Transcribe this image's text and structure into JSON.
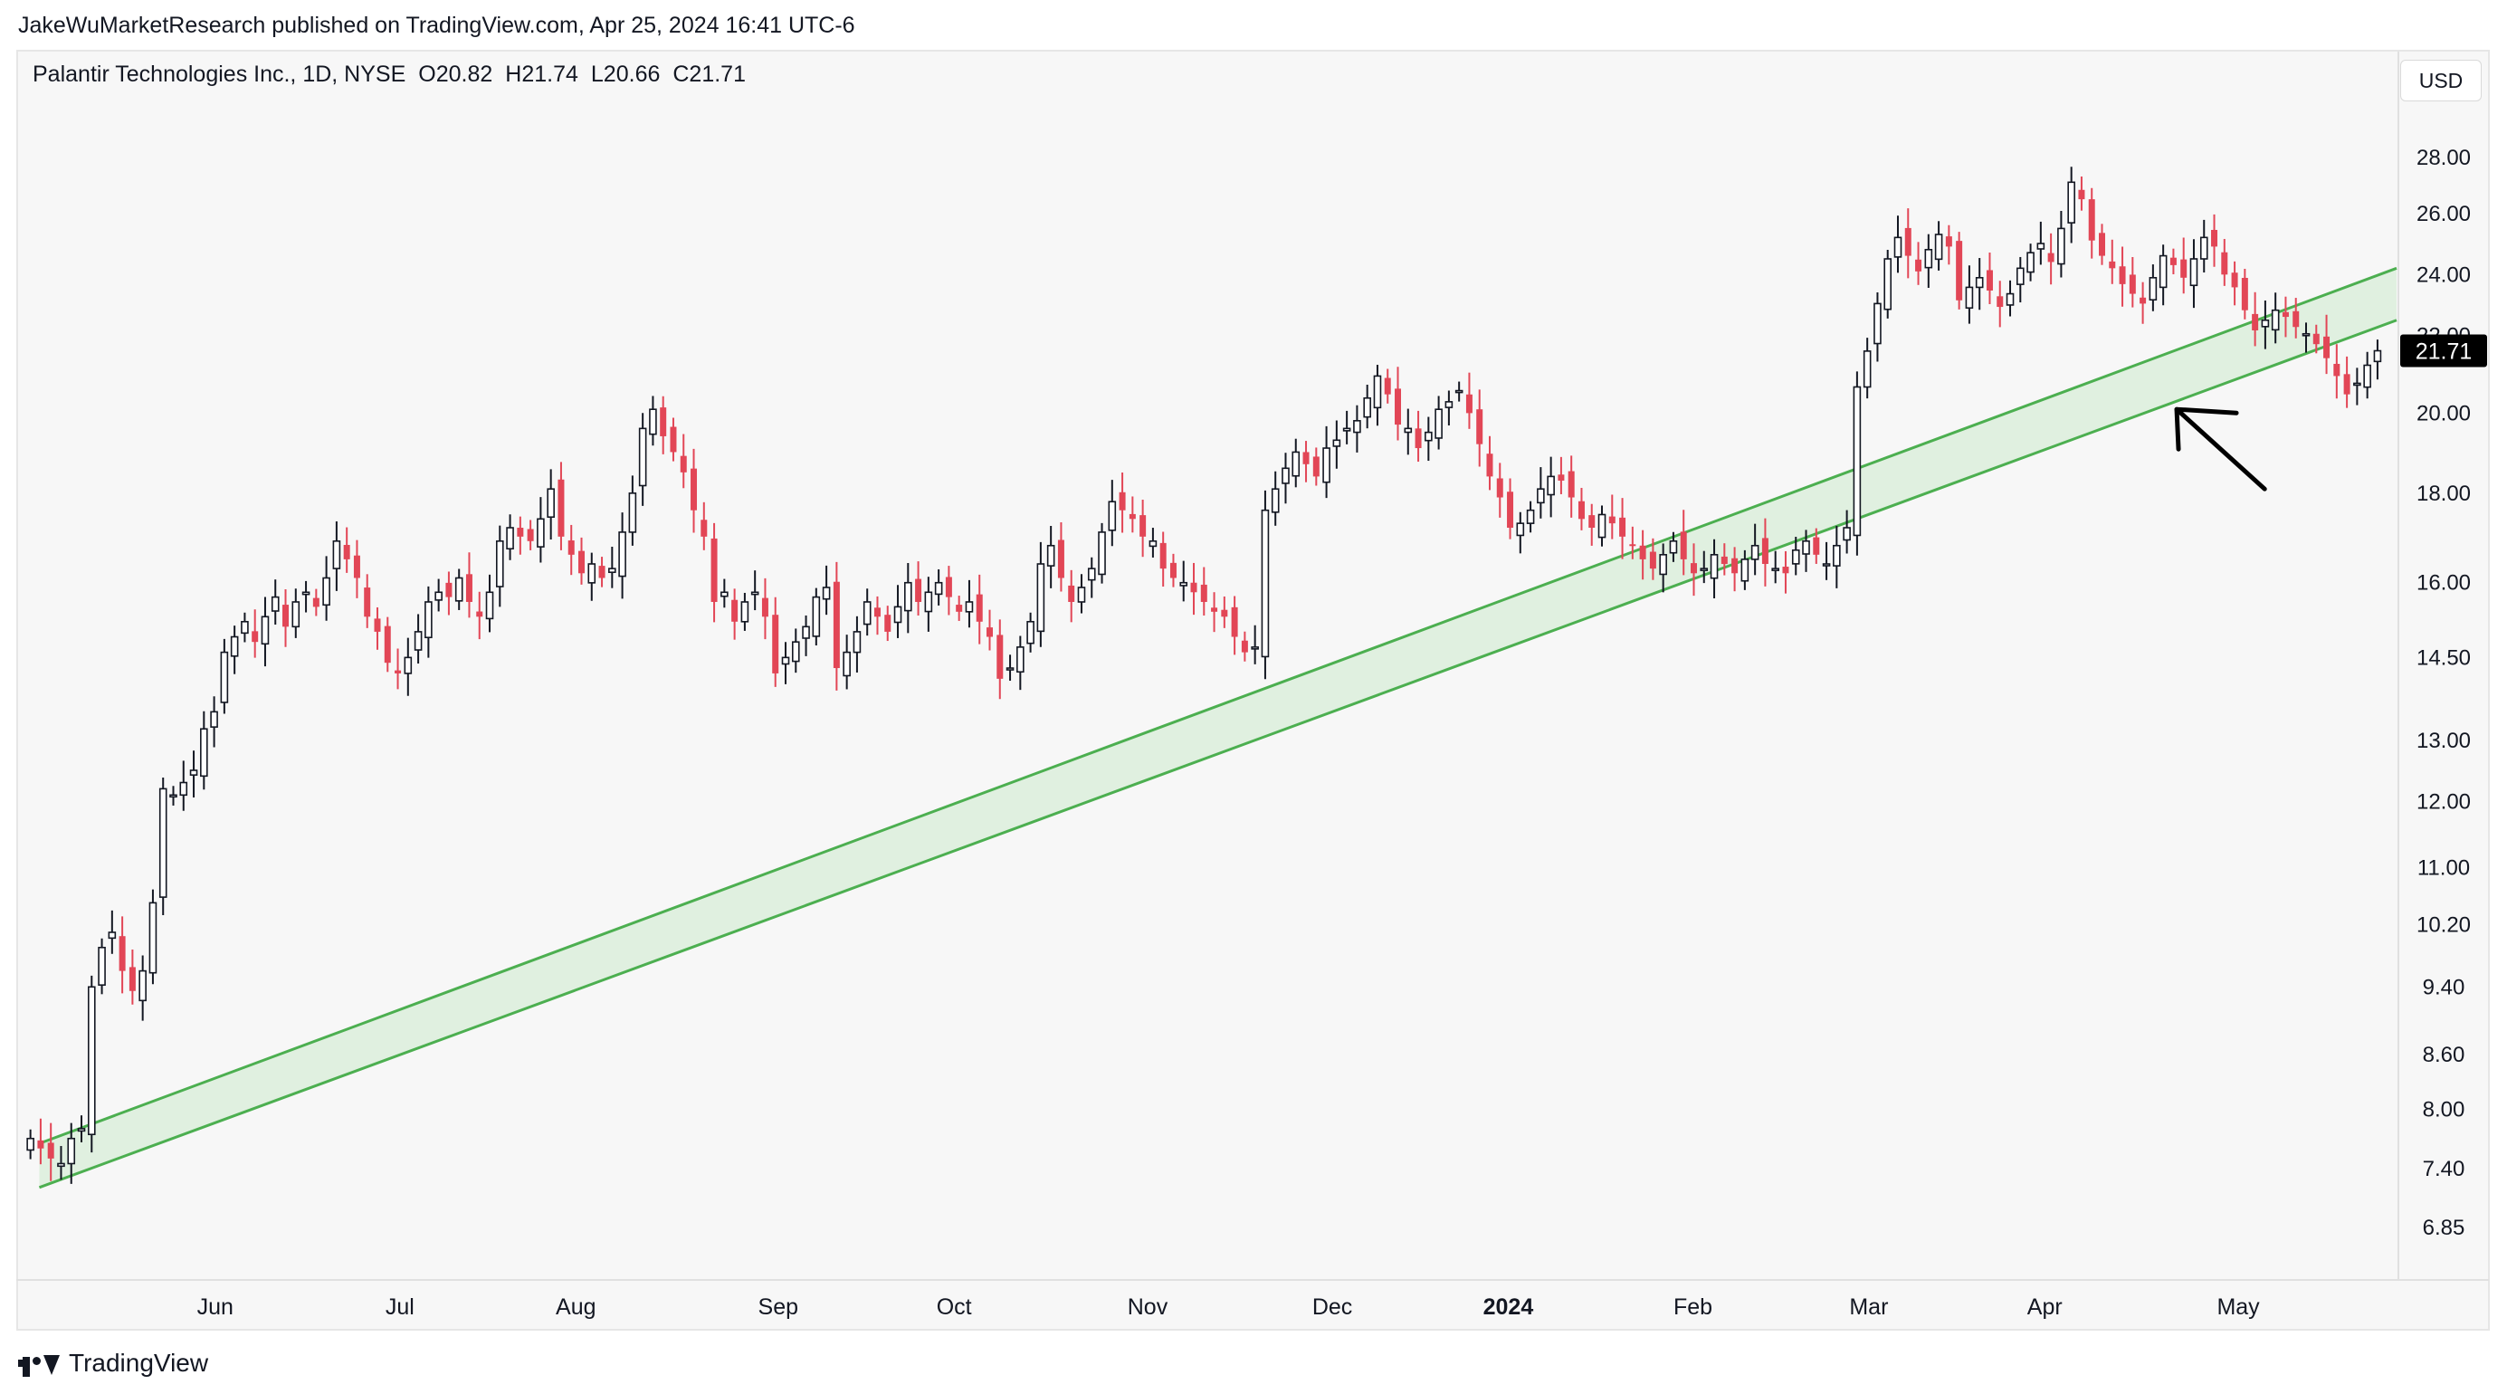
{
  "header": {
    "published_line": "JakeWuMarketResearch published on TradingView.com, Apr 25, 2024 16:41 UTC-6",
    "symbol_name": "Palantir Technologies Inc., 1D, NYSE",
    "open": "O20.82",
    "high": "H21.74",
    "low": "L20.66",
    "close": "C21.71",
    "currency_button": "USD"
  },
  "footer": {
    "brand": "TradingView"
  },
  "chart_data": {
    "type": "candlestick",
    "title": "Palantir Technologies Inc., 1D, NYSE",
    "scale": "log",
    "colors": {
      "up_fill": "#ffffff",
      "up_outline": "#131722",
      "down": "#e24656",
      "channel_line": "#4caf50",
      "channel_fill": "#dcefdc",
      "price_label_bg": "#000000"
    },
    "y_ticks": [
      "28.00",
      "26.00",
      "24.00",
      "20.00",
      "18.00",
      "16.00",
      "14.50",
      "13.00",
      "12.00",
      "11.00",
      "10.20",
      "9.40",
      "8.60",
      "8.00",
      "7.40",
      "6.85"
    ],
    "y_tick_values": [
      28,
      26,
      24,
      20,
      18,
      16,
      14.5,
      13,
      12,
      11,
      10.2,
      9.4,
      8.6,
      8.0,
      7.4,
      6.85
    ],
    "ylim": [
      6.5,
      31.5
    ],
    "x_ticks": [
      {
        "label": "Jun",
        "day": 22,
        "bold": false
      },
      {
        "label": "Jul",
        "day": 43,
        "bold": false
      },
      {
        "label": "Aug",
        "day": 63,
        "bold": false
      },
      {
        "label": "Sep",
        "day": 86,
        "bold": false
      },
      {
        "label": "Oct",
        "day": 106,
        "bold": false
      },
      {
        "label": "Nov",
        "day": 128,
        "bold": false
      },
      {
        "label": "Dec",
        "day": 149,
        "bold": false
      },
      {
        "label": "2024",
        "day": 169,
        "bold": true
      },
      {
        "label": "Feb",
        "day": 190,
        "bold": false
      },
      {
        "label": "Mar",
        "day": 210,
        "bold": false
      },
      {
        "label": "Apr",
        "day": 230,
        "bold": false
      },
      {
        "label": "May",
        "day": 252,
        "bold": false
      }
    ],
    "x_range_days": [
      0,
      270
    ],
    "last_price_label": "21.71",
    "last_price": 21.71,
    "hidden_label": "22.00",
    "channel": {
      "upper": [
        {
          "day": 2,
          "price": 7.65
        },
        {
          "day": 270,
          "price": 24.2
        }
      ],
      "lower": [
        {
          "day": 2,
          "price": 7.22
        },
        {
          "day": 270,
          "price": 22.6
        }
      ]
    },
    "arrow_annotation": {
      "from_day": 255,
      "from_price": 18.1,
      "to_day": 245,
      "to_price": 20.1
    },
    "closes": [
      7.7,
      7.6,
      7.5,
      7.45,
      7.7,
      7.8,
      9.4,
      9.9,
      10.1,
      9.6,
      9.35,
      9.6,
      10.5,
      12.2,
      12.1,
      12.3,
      12.5,
      13.2,
      13.5,
      14.6,
      14.9,
      15.2,
      14.8,
      15.3,
      15.7,
      15.1,
      15.6,
      15.8,
      15.5,
      16.1,
      16.9,
      16.5,
      16.1,
      15.3,
      15.0,
      14.4,
      14.2,
      14.5,
      15.0,
      15.6,
      15.8,
      15.7,
      16.1,
      15.6,
      15.3,
      15.8,
      16.9,
      17.2,
      17.0,
      16.9,
      17.4,
      18.1,
      17.0,
      16.6,
      16.2,
      16.4,
      16.1,
      16.3,
      17.1,
      18.0,
      19.6,
      20.1,
      19.4,
      19.0,
      18.5,
      17.6,
      17.0,
      15.6,
      15.8,
      15.2,
      15.6,
      15.8,
      15.3,
      14.2,
      14.5,
      14.8,
      15.1,
      15.7,
      15.9,
      14.3,
      14.6,
      15.0,
      15.6,
      15.3,
      15.0,
      15.5,
      16.0,
      15.6,
      15.8,
      16.0,
      15.7,
      15.4,
      15.6,
      15.2,
      14.9,
      14.1,
      14.3,
      14.7,
      15.2,
      16.4,
      16.8,
      16.1,
      15.6,
      15.9,
      16.3,
      17.1,
      17.8,
      17.6,
      17.4,
      17.0,
      16.9,
      16.3,
      16.1,
      16.0,
      15.8,
      15.6,
      15.4,
      15.3,
      14.9,
      14.6,
      14.7,
      17.6,
      18.1,
      18.6,
      19.0,
      18.7,
      18.4,
      19.1,
      19.3,
      19.6,
      19.8,
      20.4,
      21.0,
      20.5,
      19.7,
      19.6,
      19.1,
      19.5,
      20.1,
      20.3,
      20.6,
      20.0,
      19.2,
      18.4,
      17.9,
      17.2,
      17.3,
      17.6,
      18.1,
      18.4,
      18.3,
      17.9,
      17.4,
      17.2,
      17.5,
      17.3,
      17.0,
      16.8,
      16.5,
      16.3,
      16.6,
      16.9,
      16.5,
      16.2,
      16.3,
      16.6,
      16.4,
      16.2,
      16.5,
      16.8,
      16.4,
      16.3,
      16.2,
      16.7,
      16.9,
      16.6,
      16.4,
      16.8,
      17.2,
      20.7,
      21.7,
      23.1,
      24.5,
      25.2,
      24.6,
      24.1,
      24.8,
      25.3,
      24.9,
      23.2,
      23.6,
      23.9,
      23.5,
      23.0,
      23.4,
      24.2,
      24.7,
      25.0,
      24.4,
      25.5,
      27.1,
      26.5,
      25.1,
      24.6,
      24.2,
      23.7,
      23.4,
      23.1,
      23.9,
      24.6,
      24.3,
      23.9,
      24.5,
      25.2,
      24.9,
      24.0,
      23.6,
      22.9,
      22.3,
      22.6,
      22.9,
      22.7,
      22.4,
      22.2,
      21.9,
      21.5,
      21.0,
      20.5,
      20.8,
      21.3,
      21.71
    ]
  }
}
